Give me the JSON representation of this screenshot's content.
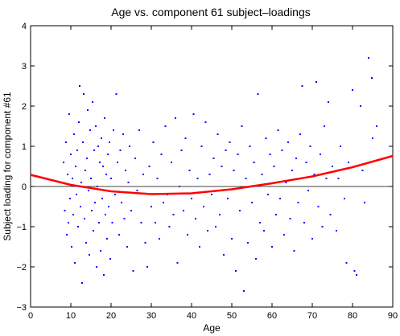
{
  "chart_data": {
    "type": "scatter",
    "title": "Age vs. component 61 subject–loadings",
    "xlabel": "Age",
    "ylabel": "Subject loading for component #61",
    "xlim": [
      0,
      90
    ],
    "ylim": [
      -3,
      4
    ],
    "xticks": [
      "0",
      "10",
      "20",
      "30",
      "40",
      "50",
      "60",
      "70",
      "80",
      "90"
    ],
    "yticks": [
      "−3",
      "−2",
      "−1",
      "0",
      "1",
      "2",
      "3",
      "4"
    ],
    "grid": false,
    "zero_line": 0,
    "colors": {
      "points": "#0000ff",
      "fit": "#ff0000",
      "zero_line": "#000000"
    },
    "fit_curve": {
      "kind": "quadratic",
      "x": [
        0,
        10,
        20,
        30,
        40,
        50,
        60,
        70,
        80,
        90
      ],
      "y": [
        0.29,
        0.04,
        -0.12,
        -0.19,
        -0.17,
        -0.07,
        0.08,
        0.25,
        0.48,
        0.76
      ]
    },
    "points": [
      [
        8.2,
        0.6
      ],
      [
        8.5,
        -0.6
      ],
      [
        8.8,
        1.1
      ],
      [
        9.0,
        -1.2
      ],
      [
        9.2,
        0.3
      ],
      [
        9.4,
        -0.9
      ],
      [
        9.6,
        1.8
      ],
      [
        9.8,
        -0.3
      ],
      [
        10.0,
        0.8
      ],
      [
        10.2,
        -1.5
      ],
      [
        10.4,
        0.2
      ],
      [
        10.6,
        -0.7
      ],
      [
        10.8,
        1.3
      ],
      [
        11.0,
        -1.9
      ],
      [
        11.2,
        0.5
      ],
      [
        11.4,
        -0.2
      ],
      [
        11.6,
        0.9
      ],
      [
        11.8,
        -1.0
      ],
      [
        12.0,
        1.6
      ],
      [
        12.2,
        2.5
      ],
      [
        12.4,
        -0.5
      ],
      [
        12.6,
        0.1
      ],
      [
        12.8,
        -2.4
      ],
      [
        13.0,
        1.1
      ],
      [
        13.2,
        2.3
      ],
      [
        13.4,
        -0.8
      ],
      [
        13.6,
        0.4
      ],
      [
        13.8,
        -1.4
      ],
      [
        14.0,
        0.7
      ],
      [
        14.2,
        1.9
      ],
      [
        14.4,
        -0.1
      ],
      [
        14.6,
        -1.7
      ],
      [
        14.8,
        1.4
      ],
      [
        15.0,
        0.2
      ],
      [
        15.2,
        -0.6
      ],
      [
        15.4,
        2.1
      ],
      [
        15.6,
        -1.1
      ],
      [
        15.8,
        0.9
      ],
      [
        16.0,
        -0.4
      ],
      [
        16.2,
        1.5
      ],
      [
        16.4,
        -2.0
      ],
      [
        16.6,
        0.0
      ],
      [
        16.8,
        1.0
      ],
      [
        17.0,
        -0.9
      ],
      [
        17.2,
        0.6
      ],
      [
        17.4,
        -1.6
      ],
      [
        17.6,
        1.2
      ],
      [
        17.8,
        -0.3
      ],
      [
        18.0,
        0.5
      ],
      [
        18.2,
        -2.2
      ],
      [
        18.4,
        1.7
      ],
      [
        18.6,
        -0.7
      ],
      [
        18.8,
        0.3
      ],
      [
        19.0,
        -1.3
      ],
      [
        19.2,
        0.8
      ],
      [
        19.4,
        -0.5
      ],
      [
        19.6,
        1.1
      ],
      [
        19.8,
        -1.8
      ],
      [
        20.0,
        0.2
      ],
      [
        20.3,
        -0.9
      ],
      [
        20.6,
        1.4
      ],
      [
        21.0,
        -0.2
      ],
      [
        21.3,
        2.3
      ],
      [
        21.6,
        0.6
      ],
      [
        22.0,
        -1.2
      ],
      [
        22.3,
        0.9
      ],
      [
        22.6,
        -0.4
      ],
      [
        23.0,
        1.3
      ],
      [
        23.3,
        -0.8
      ],
      [
        23.6,
        0.4
      ],
      [
        24.0,
        -1.5
      ],
      [
        24.3,
        0.1
      ],
      [
        24.6,
        1.0
      ],
      [
        25.0,
        -0.6
      ],
      [
        25.5,
        -2.1
      ],
      [
        26.0,
        0.7
      ],
      [
        26.5,
        -0.1
      ],
      [
        27.0,
        1.4
      ],
      [
        27.5,
        -0.9
      ],
      [
        28.0,
        0.3
      ],
      [
        28.5,
        -1.4
      ],
      [
        29.0,
        -2.0
      ],
      [
        29.5,
        0.5
      ],
      [
        30.0,
        -0.5
      ],
      [
        30.5,
        1.1
      ],
      [
        31.0,
        -0.9
      ],
      [
        31.5,
        0.2
      ],
      [
        32.0,
        -1.3
      ],
      [
        32.5,
        0.8
      ],
      [
        33.0,
        -0.4
      ],
      [
        33.5,
        1.5
      ],
      [
        34.0,
        -0.2
      ],
      [
        34.5,
        -1.0
      ],
      [
        35.0,
        0.6
      ],
      [
        35.5,
        -0.7
      ],
      [
        36.0,
        1.7
      ],
      [
        36.5,
        -1.9
      ],
      [
        37.0,
        0.0
      ],
      [
        37.5,
        0.9
      ],
      [
        38.0,
        -0.6
      ],
      [
        38.5,
        1.2
      ],
      [
        39.0,
        -1.2
      ],
      [
        39.5,
        0.4
      ],
      [
        40.0,
        -0.3
      ],
      [
        40.5,
        1.8
      ],
      [
        41.0,
        -0.8
      ],
      [
        41.5,
        0.2
      ],
      [
        42.0,
        -1.5
      ],
      [
        42.5,
        1.0
      ],
      [
        43.0,
        -0.5
      ],
      [
        43.5,
        1.6
      ],
      [
        44.0,
        -1.1
      ],
      [
        44.5,
        0.3
      ],
      [
        45.0,
        -0.2
      ],
      [
        45.5,
        0.7
      ],
      [
        46.0,
        -1.0
      ],
      [
        46.5,
        1.3
      ],
      [
        47.0,
        -0.7
      ],
      [
        47.5,
        0.5
      ],
      [
        48.0,
        -1.7
      ],
      [
        48.5,
        0.9
      ],
      [
        49.0,
        -0.3
      ],
      [
        49.5,
        1.1
      ],
      [
        50.0,
        -1.3
      ],
      [
        50.5,
        0.4
      ],
      [
        51.0,
        -2.1
      ],
      [
        51.5,
        0.8
      ],
      [
        52.0,
        -0.6
      ],
      [
        52.5,
        1.5
      ],
      [
        53.0,
        -2.6
      ],
      [
        53.5,
        0.2
      ],
      [
        54.0,
        -1.4
      ],
      [
        54.5,
        1.0
      ],
      [
        55.0,
        -0.4
      ],
      [
        55.5,
        0.6
      ],
      [
        56.0,
        -1.8
      ],
      [
        56.5,
        2.3
      ],
      [
        57.0,
        -0.9
      ],
      [
        57.5,
        0.3
      ],
      [
        58.0,
        -1.1
      ],
      [
        58.5,
        1.2
      ],
      [
        59.0,
        -0.2
      ],
      [
        59.5,
        0.8
      ],
      [
        60.0,
        -1.5
      ],
      [
        60.5,
        0.5
      ],
      [
        61.0,
        -0.7
      ],
      [
        61.5,
        1.4
      ],
      [
        62.0,
        -0.3
      ],
      [
        62.5,
        0.9
      ],
      [
        63.0,
        -1.2
      ],
      [
        63.5,
        0.1
      ],
      [
        64.0,
        1.1
      ],
      [
        64.5,
        -0.8
      ],
      [
        65.0,
        0.4
      ],
      [
        65.5,
        -1.6
      ],
      [
        66.0,
        0.7
      ],
      [
        66.5,
        -0.4
      ],
      [
        67.0,
        1.3
      ],
      [
        67.5,
        2.5
      ],
      [
        68.0,
        -0.9
      ],
      [
        68.5,
        0.6
      ],
      [
        69.0,
        -0.1
      ],
      [
        69.5,
        1.0
      ],
      [
        70.0,
        -1.3
      ],
      [
        70.5,
        0.3
      ],
      [
        71.0,
        2.6
      ],
      [
        71.5,
        -0.5
      ],
      [
        72.0,
        0.8
      ],
      [
        72.5,
        -1.0
      ],
      [
        73.0,
        1.5
      ],
      [
        73.5,
        0.2
      ],
      [
        74.0,
        2.1
      ],
      [
        74.5,
        -0.7
      ],
      [
        75.0,
        0.5
      ],
      [
        76.0,
        -1.1
      ],
      [
        77.0,
        1.0
      ],
      [
        78.0,
        -0.3
      ],
      [
        79.0,
        0.6
      ],
      [
        80.0,
        2.4
      ],
      [
        81.0,
        -2.2
      ],
      [
        82.0,
        2.0
      ],
      [
        83.0,
        -0.4
      ],
      [
        84.0,
        3.2
      ],
      [
        85.0,
        1.2
      ],
      [
        86.0,
        1.5
      ],
      [
        84.8,
        2.7
      ],
      [
        80.5,
        -2.1
      ],
      [
        82.5,
        0.4
      ],
      [
        76.5,
        0.2
      ],
      [
        78.5,
        -1.9
      ]
    ]
  }
}
